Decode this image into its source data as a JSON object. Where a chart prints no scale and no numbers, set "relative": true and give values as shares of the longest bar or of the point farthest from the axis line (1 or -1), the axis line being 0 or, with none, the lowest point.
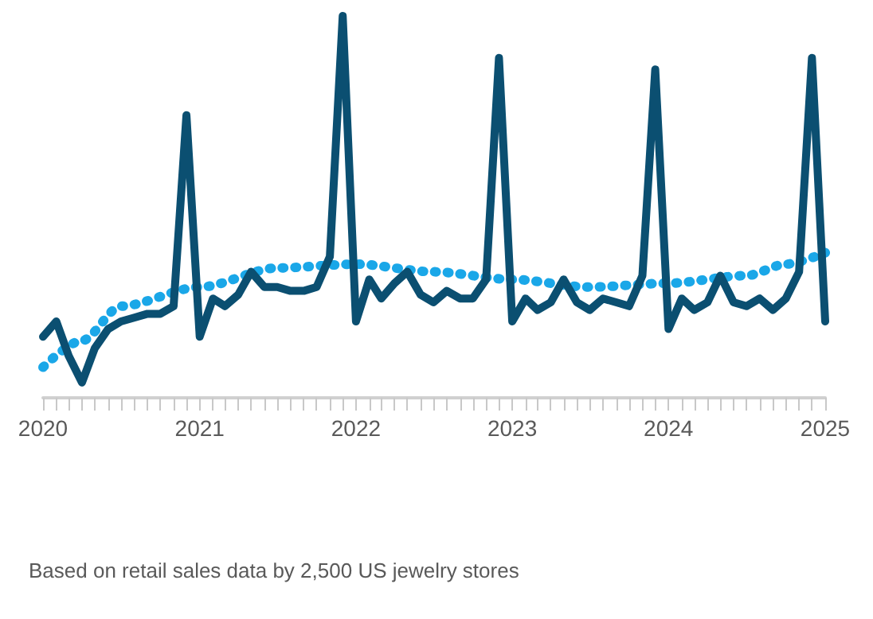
{
  "chart_data": {
    "type": "line",
    "relative": true,
    "grid": false,
    "xlim": [
      "2020-01",
      "2025-01"
    ],
    "xticks": [
      {
        "value": "2020-01",
        "label": "2020"
      },
      {
        "value": "2021-01",
        "label": "2021"
      },
      {
        "value": "2022-01",
        "label": "2022"
      },
      {
        "value": "2023-01",
        "label": "2023"
      },
      {
        "value": "2024-01",
        "label": "2024"
      },
      {
        "value": "2025-01",
        "label": "2025"
      }
    ],
    "series": [
      {
        "color": "#0b4f71",
        "line_style": "solid",
        "x": [
          "2020-01",
          "2020-02",
          "2020-03",
          "2020-04",
          "2020-05",
          "2020-06",
          "2020-07",
          "2020-08",
          "2020-09",
          "2020-10",
          "2020-11",
          "2020-12",
          "2021-01",
          "2021-02",
          "2021-03",
          "2021-04",
          "2021-05",
          "2021-06",
          "2021-07",
          "2021-08",
          "2021-09",
          "2021-10",
          "2021-11",
          "2021-12",
          "2022-01",
          "2022-02",
          "2022-03",
          "2022-04",
          "2022-05",
          "2022-06",
          "2022-07",
          "2022-08",
          "2022-09",
          "2022-10",
          "2022-11",
          "2022-12",
          "2023-01",
          "2023-02",
          "2023-03",
          "2023-04",
          "2023-05",
          "2023-06",
          "2023-07",
          "2023-08",
          "2023-09",
          "2023-10",
          "2023-11",
          "2023-12",
          "2024-01",
          "2024-02",
          "2024-03",
          "2024-04",
          "2024-05",
          "2024-06",
          "2024-07",
          "2024-08",
          "2024-09",
          "2024-10",
          "2024-11",
          "2024-12",
          "2025-01"
        ],
        "values": [
          0.16,
          0.2,
          0.11,
          0.04,
          0.13,
          0.18,
          0.2,
          0.21,
          0.22,
          0.22,
          0.24,
          0.74,
          0.16,
          0.26,
          0.24,
          0.27,
          0.33,
          0.29,
          0.29,
          0.28,
          0.28,
          0.29,
          0.37,
          1.0,
          0.2,
          0.31,
          0.26,
          0.3,
          0.33,
          0.27,
          0.25,
          0.28,
          0.26,
          0.26,
          0.31,
          0.89,
          0.2,
          0.26,
          0.23,
          0.25,
          0.31,
          0.25,
          0.23,
          0.26,
          0.25,
          0.24,
          0.32,
          0.86,
          0.18,
          0.26,
          0.23,
          0.25,
          0.32,
          0.25,
          0.24,
          0.26,
          0.23,
          0.26,
          0.33,
          0.89,
          0.2
        ]
      },
      {
        "color": "#1aa7e8",
        "line_style": "dotted",
        "x": [
          "2020-01",
          "2020-04",
          "2020-07",
          "2021-01",
          "2021-07",
          "2022-01",
          "2022-07",
          "2023-01",
          "2023-07",
          "2024-01",
          "2024-07",
          "2024-10",
          "2025-01"
        ],
        "values": [
          0.08,
          0.15,
          0.24,
          0.29,
          0.34,
          0.35,
          0.33,
          0.31,
          0.29,
          0.3,
          0.32,
          0.35,
          0.38
        ]
      }
    ],
    "annotations": [
      "Based on retail sales data by 2,500 US jewelry stores"
    ]
  }
}
